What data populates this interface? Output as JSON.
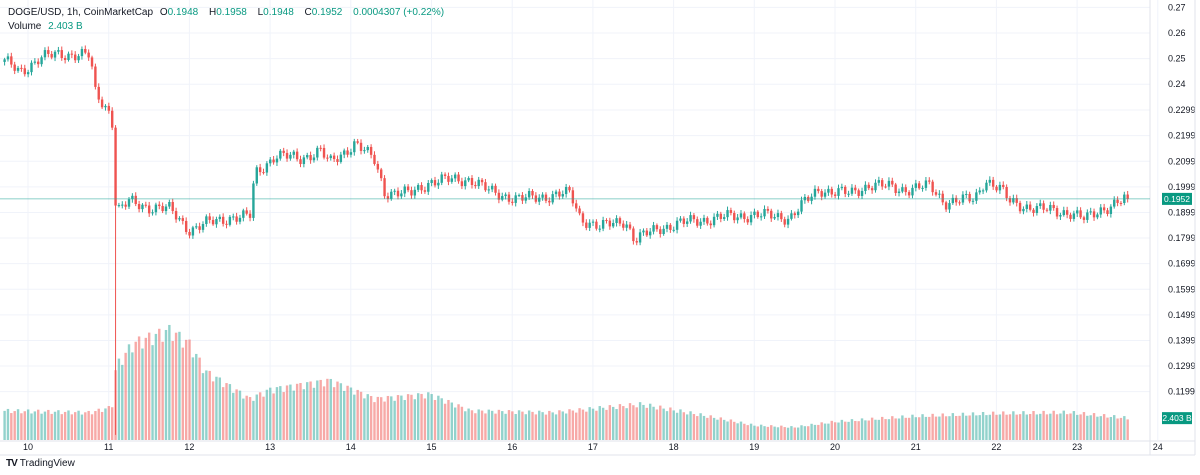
{
  "legend": {
    "symbol": "DOGE/USD, 1h, CoinMarketCap",
    "o_label": "O",
    "o": "0.1948",
    "h_label": "H",
    "h": "0.1958",
    "l_label": "L",
    "l": "0.1948",
    "c_label": "C",
    "c": "0.1952",
    "change": "0.0004307 (+0.22%)",
    "volume_label": "Volume",
    "volume": "2.403 B"
  },
  "branding": {
    "logo_text": "TradingView"
  },
  "chart_data": {
    "type": "candlestick",
    "interval": "1h",
    "x_unit": "day of month",
    "y_ticks": [
      "0.27",
      "0.26",
      "0.25",
      "0.24",
      "0.2299",
      "0.2199",
      "0.2099",
      "0.1999",
      "0.1899",
      "0.1799",
      "0.1699",
      "0.1599",
      "0.1499",
      "0.1399",
      "0.1299",
      "0.1199"
    ],
    "x_ticks": [
      "10",
      "11",
      "12",
      "13",
      "14",
      "15",
      "16",
      "17",
      "18",
      "19",
      "20",
      "21",
      "22",
      "23",
      "24"
    ],
    "ylim": [
      0.098,
      0.2713
    ],
    "last_price": 0.1952,
    "last_price_label": "0.1952",
    "last_volume_label": "2.403 B",
    "up_color": "#26a69a",
    "down_color": "#ef5350",
    "grid": true,
    "close_path": [
      [
        9.71,
        0.2487
      ],
      [
        9.9,
        0.245
      ],
      [
        10.15,
        0.25
      ],
      [
        10.4,
        0.252
      ],
      [
        10.77,
        0.251
      ],
      [
        10.83,
        0.237
      ],
      [
        11.04,
        0.228
      ],
      [
        11.09,
        0.19
      ],
      [
        11.26,
        0.194
      ],
      [
        11.51,
        0.192
      ],
      [
        11.76,
        0.191
      ],
      [
        12.01,
        0.183
      ],
      [
        12.26,
        0.186
      ],
      [
        12.5,
        0.188
      ],
      [
        12.75,
        0.188
      ],
      [
        12.81,
        0.205
      ],
      [
        13.06,
        0.212
      ],
      [
        13.37,
        0.211
      ],
      [
        13.62,
        0.214
      ],
      [
        13.74,
        0.209
      ],
      [
        14.05,
        0.217
      ],
      [
        14.3,
        0.21
      ],
      [
        14.42,
        0.198
      ],
      [
        14.73,
        0.197
      ],
      [
        14.98,
        0.202
      ],
      [
        15.48,
        0.203
      ],
      [
        15.72,
        0.198
      ],
      [
        16.1,
        0.195
      ],
      [
        16.59,
        0.197
      ],
      [
        16.72,
        0.197
      ],
      [
        16.84,
        0.188
      ],
      [
        17.09,
        0.184
      ],
      [
        17.4,
        0.187
      ],
      [
        17.52,
        0.179
      ],
      [
        17.83,
        0.184
      ],
      [
        18.33,
        0.187
      ],
      [
        18.95,
        0.189
      ],
      [
        19.44,
        0.188
      ],
      [
        19.57,
        0.192
      ],
      [
        19.81,
        0.199
      ],
      [
        20.19,
        0.197
      ],
      [
        20.43,
        0.201
      ],
      [
        20.81,
        0.199
      ],
      [
        21.18,
        0.2
      ],
      [
        21.36,
        0.194
      ],
      [
        21.73,
        0.195
      ],
      [
        21.86,
        0.203
      ],
      [
        22.04,
        0.199
      ],
      [
        22.17,
        0.194
      ],
      [
        22.54,
        0.191
      ],
      [
        22.91,
        0.19
      ],
      [
        23.1,
        0.187
      ],
      [
        23.28,
        0.191
      ],
      [
        23.63,
        0.1952
      ]
    ],
    "spike_wick": {
      "t": 11.09,
      "low": 0.103
    },
    "volume_path_billions": [
      [
        9.71,
        3.2
      ],
      [
        10.77,
        3.0
      ],
      [
        11.04,
        3.6
      ],
      [
        11.09,
        8.0
      ],
      [
        11.3,
        10.5
      ],
      [
        11.76,
        12.0
      ],
      [
        12.0,
        10.5
      ],
      [
        12.2,
        7.5
      ],
      [
        12.75,
        4.5
      ],
      [
        13.0,
        5.5
      ],
      [
        13.74,
        6.5
      ],
      [
        14.3,
        4.5
      ],
      [
        14.98,
        5.0
      ],
      [
        15.48,
        3.2
      ],
      [
        16.5,
        3.0
      ],
      [
        17.09,
        3.5
      ],
      [
        17.6,
        3.9
      ],
      [
        18.3,
        2.8
      ],
      [
        19.0,
        1.6
      ],
      [
        19.5,
        1.4
      ],
      [
        20.0,
        2.0
      ],
      [
        21.0,
        2.6
      ],
      [
        22.0,
        2.9
      ],
      [
        22.9,
        3.0
      ],
      [
        23.63,
        2.403
      ]
    ]
  }
}
